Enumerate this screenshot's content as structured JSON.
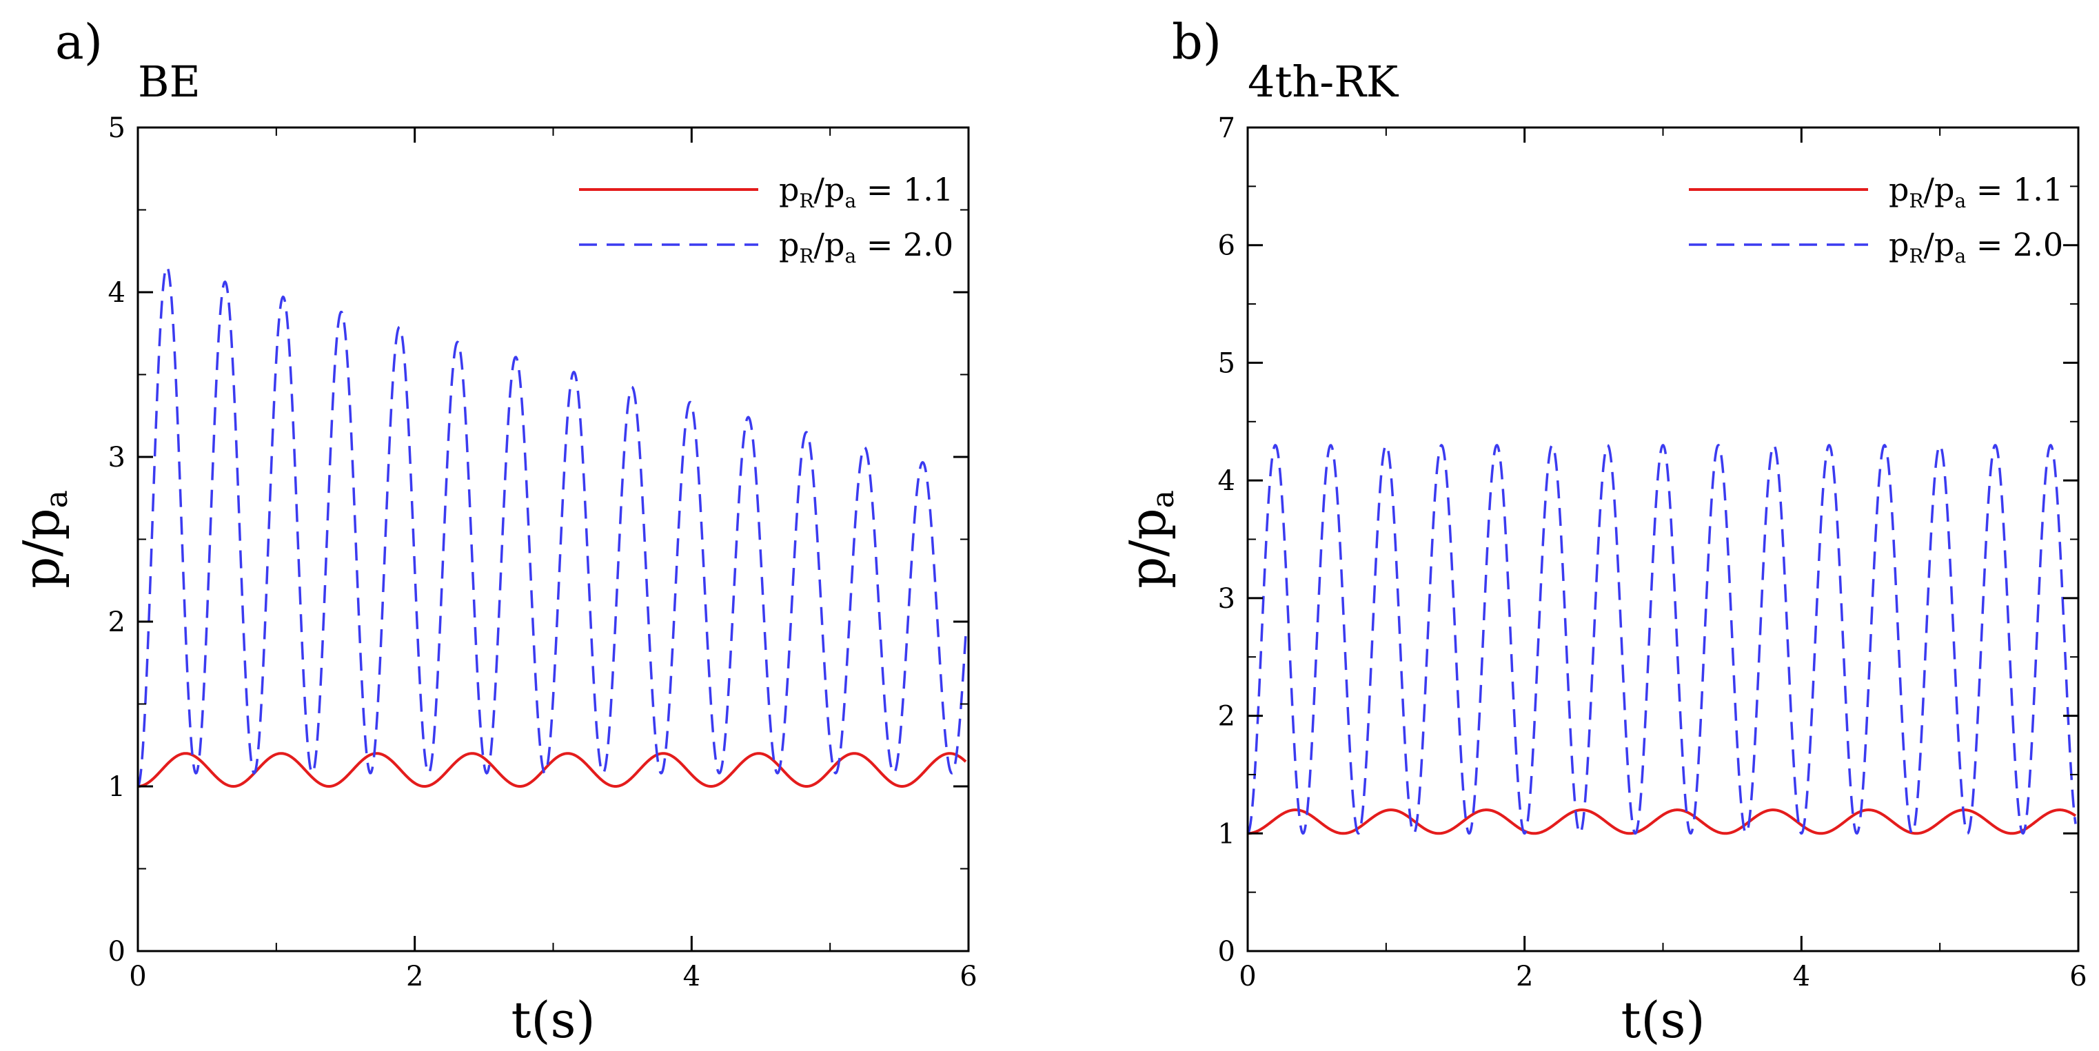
{
  "chart_data": [
    {
      "type": "line",
      "panel_label": "a)",
      "title": "BE",
      "xlabel": "t(s)",
      "ylabel": {
        "main": "p/p",
        "sub": "a"
      },
      "xlim": [
        0,
        6
      ],
      "ylim": [
        0,
        5
      ],
      "xticks": [
        "0",
        "2",
        "4",
        "6"
      ],
      "yticks": [
        "0",
        "1",
        "2",
        "3",
        "4",
        "5"
      ],
      "grid": false,
      "legend_position": "top-right",
      "series": [
        {
          "legend": {
            "p": "p",
            "sub1": "R",
            "slash": "/p",
            "sub2": "a",
            "value": " = 1.1"
          },
          "color": "#e41c1c",
          "dash": "solid",
          "period": 0.69,
          "trough": 1.0,
          "peak": [
            1.2,
            1.2
          ],
          "tmax": 5.98
        },
        {
          "legend": {
            "p": "p",
            "sub1": "R",
            "slash": "/p",
            "sub2": "a",
            "value": " = 2.0"
          },
          "color": "#3b3bf0",
          "dash": "dashed",
          "period": 0.42,
          "trough": 1.08,
          "peak": [
            4.2,
            2.9
          ],
          "tmax": 5.98,
          "start": 1.0
        }
      ]
    },
    {
      "type": "line",
      "panel_label": "b)",
      "title": "4th-RK",
      "xlabel": "t(s)",
      "ylabel": {
        "main": "p/p",
        "sub": "a"
      },
      "xlim": [
        0,
        6
      ],
      "ylim": [
        0,
        7
      ],
      "xticks": [
        "0",
        "2",
        "4",
        "6"
      ],
      "yticks": [
        "0",
        "1",
        "2",
        "3",
        "4",
        "5",
        "6",
        "7"
      ],
      "grid": false,
      "legend_position": "top-right",
      "series": [
        {
          "legend": {
            "p": "p",
            "sub1": "R",
            "slash": "/p",
            "sub2": "a",
            "value": " = 1.1"
          },
          "color": "#e41c1c",
          "dash": "solid",
          "period": 0.69,
          "trough": 1.0,
          "peak": [
            1.2,
            1.2
          ],
          "tmax": 5.98
        },
        {
          "legend": {
            "p": "p",
            "sub1": "R",
            "slash": "/p",
            "sub2": "a",
            "value": " = 2.0"
          },
          "color": "#3b3bf0",
          "dash": "dashed",
          "period": 0.4,
          "trough": 1.0,
          "peak": [
            4.3,
            4.3
          ],
          "tmax": 5.98,
          "start": 1.0
        }
      ]
    }
  ]
}
